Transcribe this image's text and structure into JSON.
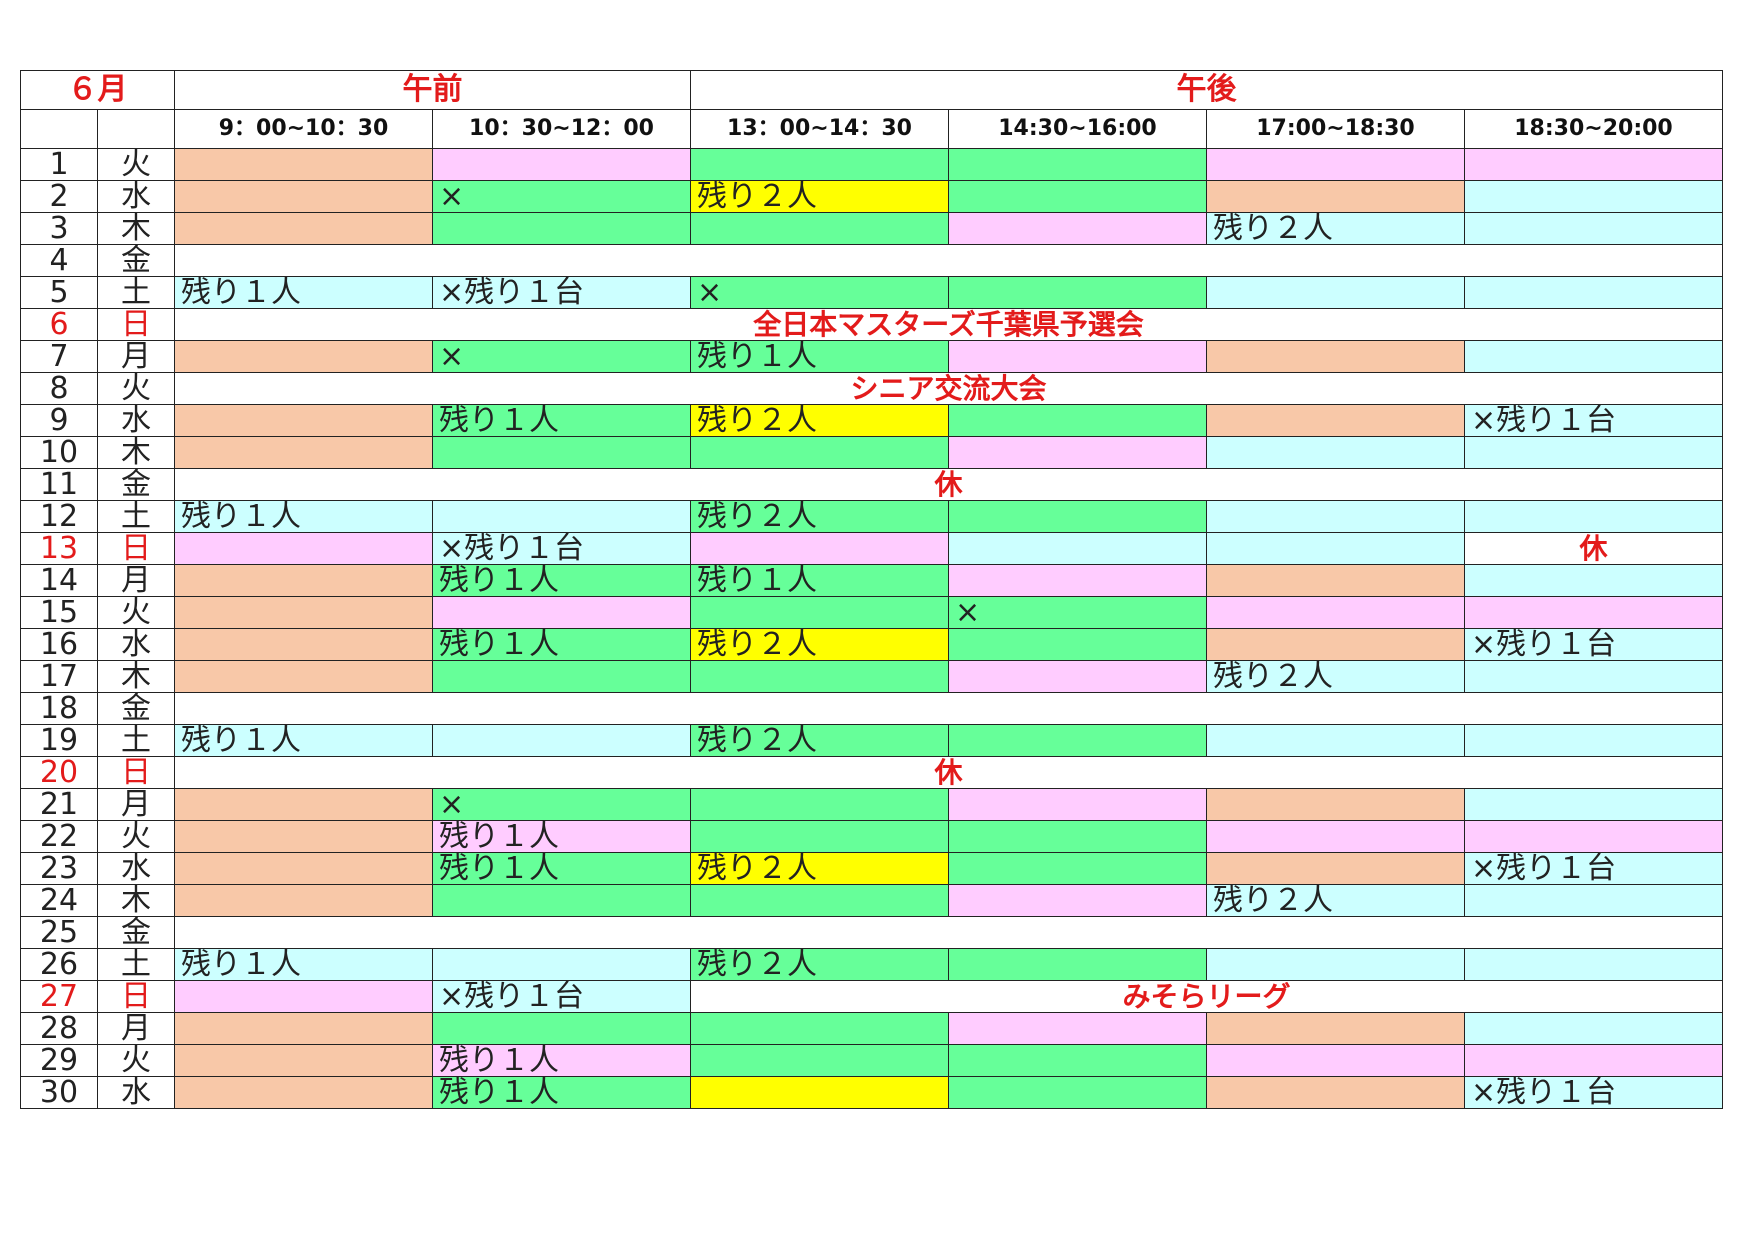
{
  "header": {
    "month": "６月",
    "am_label": "午前",
    "pm_label": "午後",
    "slots": [
      "9：00~10：30",
      "10：30~12：00",
      "13：00~14：30",
      "14:30~16:00",
      "17:00~18:30",
      "18:30~20:00"
    ]
  },
  "colors": {
    "o": "#f8c8a8",
    "p": "#ffccff",
    "g": "#66ff99",
    "y": "#ffff00",
    "l": "#ccffff",
    "b": "#ffffff",
    "holiday_red": "#e31b1b"
  },
  "rows": [
    {
      "day": "1",
      "wd": "火",
      "cells": [
        {
          "bg": "o",
          "text": ""
        },
        {
          "bg": "p",
          "text": ""
        },
        {
          "bg": "g",
          "text": ""
        },
        {
          "bg": "g",
          "text": ""
        },
        {
          "bg": "p",
          "text": ""
        },
        {
          "bg": "p",
          "text": ""
        }
      ]
    },
    {
      "day": "2",
      "wd": "水",
      "cells": [
        {
          "bg": "o",
          "text": ""
        },
        {
          "bg": "g",
          "text": "×"
        },
        {
          "bg": "y",
          "text": "残り２人"
        },
        {
          "bg": "g",
          "text": ""
        },
        {
          "bg": "o",
          "text": ""
        },
        {
          "bg": "l",
          "text": ""
        }
      ]
    },
    {
      "day": "3",
      "wd": "木",
      "cells": [
        {
          "bg": "o",
          "text": ""
        },
        {
          "bg": "g",
          "text": ""
        },
        {
          "bg": "g",
          "text": ""
        },
        {
          "bg": "p",
          "text": ""
        },
        {
          "bg": "l",
          "text": "残り２人"
        },
        {
          "bg": "l",
          "text": ""
        }
      ]
    },
    {
      "day": "4",
      "wd": "金",
      "banner": ""
    },
    {
      "day": "5",
      "wd": "土",
      "cells": [
        {
          "bg": "l",
          "text": "残り１人"
        },
        {
          "bg": "l",
          "text": "×残り１台"
        },
        {
          "bg": "g",
          "text": "×"
        },
        {
          "bg": "g",
          "text": ""
        },
        {
          "bg": "l",
          "text": ""
        },
        {
          "bg": "l",
          "text": ""
        }
      ]
    },
    {
      "day": "6",
      "wd": "日",
      "red": true,
      "banner": "全日本マスターズ千葉県予選会"
    },
    {
      "day": "7",
      "wd": "月",
      "cells": [
        {
          "bg": "o",
          "text": ""
        },
        {
          "bg": "g",
          "text": "×"
        },
        {
          "bg": "g",
          "text": "残り１人"
        },
        {
          "bg": "p",
          "text": ""
        },
        {
          "bg": "o",
          "text": ""
        },
        {
          "bg": "l",
          "text": ""
        }
      ]
    },
    {
      "day": "8",
      "wd": "火",
      "banner": "シニア交流大会"
    },
    {
      "day": "9",
      "wd": "水",
      "cells": [
        {
          "bg": "o",
          "text": ""
        },
        {
          "bg": "g",
          "text": "残り１人"
        },
        {
          "bg": "y",
          "text": "残り２人"
        },
        {
          "bg": "g",
          "text": ""
        },
        {
          "bg": "o",
          "text": ""
        },
        {
          "bg": "l",
          "text": "×残り１台"
        }
      ]
    },
    {
      "day": "10",
      "wd": "木",
      "cells": [
        {
          "bg": "o",
          "text": ""
        },
        {
          "bg": "g",
          "text": ""
        },
        {
          "bg": "g",
          "text": ""
        },
        {
          "bg": "p",
          "text": ""
        },
        {
          "bg": "l",
          "text": ""
        },
        {
          "bg": "l",
          "text": ""
        }
      ]
    },
    {
      "day": "11",
      "wd": "金",
      "banner": "休"
    },
    {
      "day": "12",
      "wd": "土",
      "cells": [
        {
          "bg": "l",
          "text": "残り１人"
        },
        {
          "bg": "l",
          "text": ""
        },
        {
          "bg": "g",
          "text": "残り２人"
        },
        {
          "bg": "g",
          "text": ""
        },
        {
          "bg": "l",
          "text": ""
        },
        {
          "bg": "l",
          "text": ""
        }
      ]
    },
    {
      "day": "13",
      "wd": "日",
      "red": true,
      "cells": [
        {
          "bg": "p",
          "text": ""
        },
        {
          "bg": "l",
          "text": "×残り１台"
        },
        {
          "bg": "p",
          "text": ""
        },
        {
          "bg": "l",
          "text": ""
        },
        {
          "bg": "l",
          "text": ""
        },
        {
          "bg": "b",
          "text": "休",
          "special": true
        }
      ]
    },
    {
      "day": "14",
      "wd": "月",
      "cells": [
        {
          "bg": "o",
          "text": ""
        },
        {
          "bg": "g",
          "text": "残り１人"
        },
        {
          "bg": "g",
          "text": "残り１人"
        },
        {
          "bg": "p",
          "text": ""
        },
        {
          "bg": "o",
          "text": ""
        },
        {
          "bg": "l",
          "text": ""
        }
      ]
    },
    {
      "day": "15",
      "wd": "火",
      "cells": [
        {
          "bg": "o",
          "text": ""
        },
        {
          "bg": "p",
          "text": ""
        },
        {
          "bg": "g",
          "text": ""
        },
        {
          "bg": "g",
          "text": "×"
        },
        {
          "bg": "p",
          "text": ""
        },
        {
          "bg": "p",
          "text": ""
        }
      ]
    },
    {
      "day": "16",
      "wd": "水",
      "cells": [
        {
          "bg": "o",
          "text": ""
        },
        {
          "bg": "g",
          "text": "残り１人"
        },
        {
          "bg": "y",
          "text": "残り２人"
        },
        {
          "bg": "g",
          "text": ""
        },
        {
          "bg": "o",
          "text": ""
        },
        {
          "bg": "l",
          "text": "×残り１台"
        }
      ]
    },
    {
      "day": "17",
      "wd": "木",
      "cells": [
        {
          "bg": "o",
          "text": ""
        },
        {
          "bg": "g",
          "text": ""
        },
        {
          "bg": "g",
          "text": ""
        },
        {
          "bg": "p",
          "text": ""
        },
        {
          "bg": "l",
          "text": "残り２人"
        },
        {
          "bg": "l",
          "text": ""
        }
      ]
    },
    {
      "day": "18",
      "wd": "金",
      "banner": ""
    },
    {
      "day": "19",
      "wd": "土",
      "cells": [
        {
          "bg": "l",
          "text": "残り１人"
        },
        {
          "bg": "l",
          "text": ""
        },
        {
          "bg": "g",
          "text": "残り２人"
        },
        {
          "bg": "g",
          "text": ""
        },
        {
          "bg": "l",
          "text": ""
        },
        {
          "bg": "l",
          "text": ""
        }
      ]
    },
    {
      "day": "20",
      "wd": "日",
      "red": true,
      "banner": "休"
    },
    {
      "day": "21",
      "wd": "月",
      "cells": [
        {
          "bg": "o",
          "text": ""
        },
        {
          "bg": "g",
          "text": "×"
        },
        {
          "bg": "g",
          "text": ""
        },
        {
          "bg": "p",
          "text": ""
        },
        {
          "bg": "o",
          "text": ""
        },
        {
          "bg": "l",
          "text": ""
        }
      ]
    },
    {
      "day": "22",
      "wd": "火",
      "cells": [
        {
          "bg": "o",
          "text": ""
        },
        {
          "bg": "p",
          "text": "残り１人"
        },
        {
          "bg": "g",
          "text": ""
        },
        {
          "bg": "g",
          "text": ""
        },
        {
          "bg": "p",
          "text": ""
        },
        {
          "bg": "p",
          "text": ""
        }
      ]
    },
    {
      "day": "23",
      "wd": "水",
      "cells": [
        {
          "bg": "o",
          "text": ""
        },
        {
          "bg": "g",
          "text": "残り１人"
        },
        {
          "bg": "y",
          "text": "残り２人"
        },
        {
          "bg": "g",
          "text": ""
        },
        {
          "bg": "o",
          "text": ""
        },
        {
          "bg": "l",
          "text": "×残り１台"
        }
      ]
    },
    {
      "day": "24",
      "wd": "木",
      "cells": [
        {
          "bg": "o",
          "text": ""
        },
        {
          "bg": "g",
          "text": ""
        },
        {
          "bg": "g",
          "text": ""
        },
        {
          "bg": "p",
          "text": ""
        },
        {
          "bg": "l",
          "text": "残り２人"
        },
        {
          "bg": "l",
          "text": ""
        }
      ]
    },
    {
      "day": "25",
      "wd": "金",
      "banner": ""
    },
    {
      "day": "26",
      "wd": "土",
      "cells": [
        {
          "bg": "l",
          "text": "残り１人"
        },
        {
          "bg": "l",
          "text": ""
        },
        {
          "bg": "g",
          "text": "残り２人"
        },
        {
          "bg": "g",
          "text": ""
        },
        {
          "bg": "l",
          "text": ""
        },
        {
          "bg": "l",
          "text": ""
        }
      ]
    },
    {
      "day": "27",
      "wd": "日",
      "red": true,
      "cells": [
        {
          "bg": "p",
          "text": ""
        },
        {
          "bg": "l",
          "text": "×残り１台"
        }
      ],
      "banner4": "みそらリーグ"
    },
    {
      "day": "28",
      "wd": "月",
      "cells": [
        {
          "bg": "o",
          "text": ""
        },
        {
          "bg": "g",
          "text": ""
        },
        {
          "bg": "g",
          "text": ""
        },
        {
          "bg": "p",
          "text": ""
        },
        {
          "bg": "o",
          "text": ""
        },
        {
          "bg": "l",
          "text": ""
        }
      ]
    },
    {
      "day": "29",
      "wd": "火",
      "cells": [
        {
          "bg": "o",
          "text": ""
        },
        {
          "bg": "p",
          "text": "残り１人"
        },
        {
          "bg": "g",
          "text": ""
        },
        {
          "bg": "g",
          "text": ""
        },
        {
          "bg": "p",
          "text": ""
        },
        {
          "bg": "p",
          "text": ""
        }
      ]
    },
    {
      "day": "30",
      "wd": "水",
      "cells": [
        {
          "bg": "o",
          "text": ""
        },
        {
          "bg": "g",
          "text": "残り１人"
        },
        {
          "bg": "y",
          "text": ""
        },
        {
          "bg": "g",
          "text": ""
        },
        {
          "bg": "o",
          "text": ""
        },
        {
          "bg": "l",
          "text": "×残り１台"
        }
      ]
    }
  ]
}
